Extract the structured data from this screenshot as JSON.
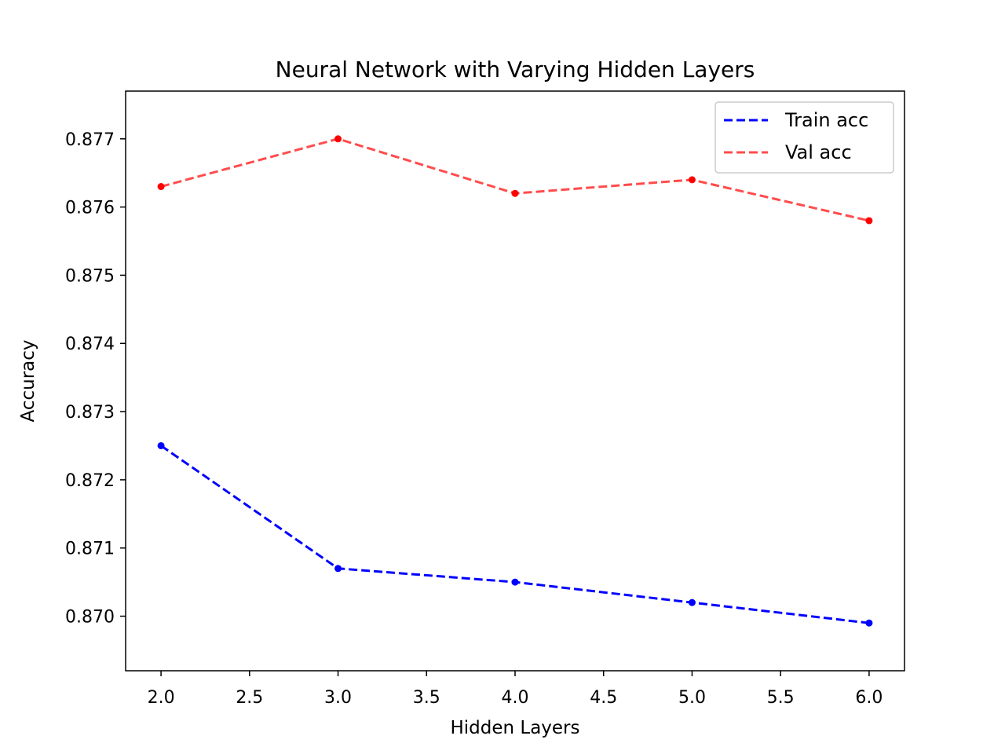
{
  "chart_data": {
    "type": "line",
    "title": "Neural Network with Varying Hidden Layers",
    "xlabel": "Hidden Layers",
    "ylabel": "Accuracy",
    "x": [
      2.0,
      3.0,
      4.0,
      5.0,
      6.0
    ],
    "xlim": [
      1.8,
      6.2
    ],
    "ylim": [
      0.8692,
      0.8777
    ],
    "xticks": [
      "2.0",
      "2.5",
      "3.0",
      "3.5",
      "4.0",
      "4.5",
      "5.0",
      "5.5",
      "6.0"
    ],
    "yticks": [
      "0.870",
      "0.871",
      "0.872",
      "0.873",
      "0.874",
      "0.875",
      "0.876",
      "0.877"
    ],
    "grid": false,
    "legend_position": "top-right",
    "series": [
      {
        "name": "Train acc",
        "color": "#0000ff",
        "linestyle": "dashed",
        "values": [
          0.8725,
          0.8707,
          0.8705,
          0.8702,
          0.8699
        ]
      },
      {
        "name": "Val acc",
        "color": "#ff4c4c",
        "marker_color": "#ff0000",
        "linestyle": "dashed",
        "values": [
          0.8763,
          0.877,
          0.8762,
          0.8764,
          0.8758
        ]
      }
    ]
  }
}
